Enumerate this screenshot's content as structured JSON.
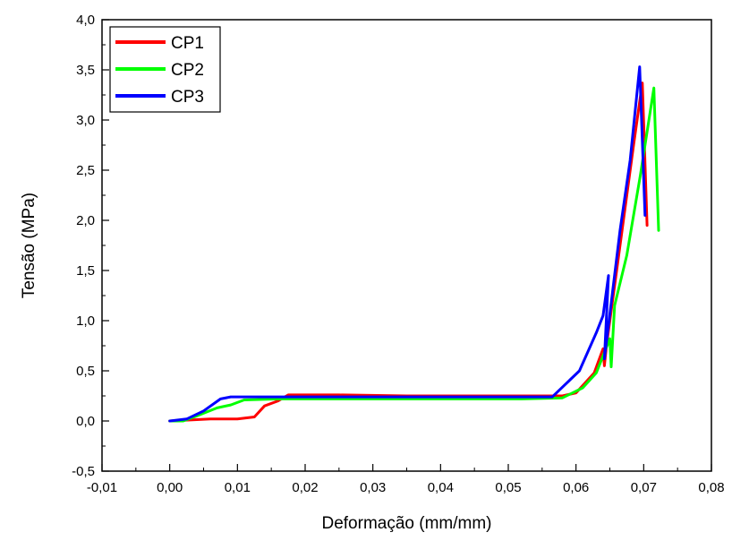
{
  "chart_data": {
    "type": "line",
    "xlabel": "Deformação (mm/mm)",
    "ylabel": "Tensão (MPa)",
    "xlim": [
      -0.01,
      0.08
    ],
    "ylim": [
      -0.5,
      4.0
    ],
    "x_ticks": [
      -0.01,
      0.0,
      0.01,
      0.02,
      0.03,
      0.04,
      0.05,
      0.06,
      0.07,
      0.08
    ],
    "x_tick_labels": [
      "-0,01",
      "0,00",
      "0,01",
      "0,02",
      "0,03",
      "0,04",
      "0,05",
      "0,06",
      "0,07",
      "0,08"
    ],
    "y_ticks": [
      -0.5,
      0.0,
      0.5,
      1.0,
      1.5,
      2.0,
      2.5,
      3.0,
      3.5,
      4.0
    ],
    "y_tick_labels": [
      "-0,5",
      "0,0",
      "0,5",
      "1,0",
      "1,5",
      "2,0",
      "2,5",
      "3,0",
      "3,5",
      "4,0"
    ],
    "grid": false,
    "legend_position": "top-left",
    "series": [
      {
        "name": "CP1",
        "color": "#ff0000",
        "points": [
          [
            0.0,
            0.0
          ],
          [
            0.003,
            0.01
          ],
          [
            0.006,
            0.02
          ],
          [
            0.01,
            0.02
          ],
          [
            0.0125,
            0.04
          ],
          [
            0.014,
            0.15
          ],
          [
            0.016,
            0.2
          ],
          [
            0.0175,
            0.26
          ],
          [
            0.025,
            0.26
          ],
          [
            0.035,
            0.25
          ],
          [
            0.045,
            0.25
          ],
          [
            0.052,
            0.25
          ],
          [
            0.058,
            0.25
          ],
          [
            0.06,
            0.28
          ],
          [
            0.0627,
            0.48
          ],
          [
            0.064,
            0.72
          ],
          [
            0.0642,
            0.55
          ],
          [
            0.0645,
            0.75
          ],
          [
            0.066,
            1.5
          ],
          [
            0.0685,
            2.75
          ],
          [
            0.0698,
            3.37
          ],
          [
            0.0705,
            1.95
          ]
        ]
      },
      {
        "name": "CP2",
        "color": "#00ff00",
        "points": [
          [
            0.0,
            0.0
          ],
          [
            0.002,
            0.0
          ],
          [
            0.004,
            0.05
          ],
          [
            0.007,
            0.13
          ],
          [
            0.009,
            0.16
          ],
          [
            0.011,
            0.21
          ],
          [
            0.016,
            0.22
          ],
          [
            0.025,
            0.22
          ],
          [
            0.035,
            0.22
          ],
          [
            0.045,
            0.22
          ],
          [
            0.052,
            0.22
          ],
          [
            0.058,
            0.23
          ],
          [
            0.061,
            0.33
          ],
          [
            0.063,
            0.48
          ],
          [
            0.065,
            0.82
          ],
          [
            0.0652,
            0.54
          ],
          [
            0.0657,
            1.15
          ],
          [
            0.0675,
            1.65
          ],
          [
            0.0695,
            2.45
          ],
          [
            0.0715,
            3.32
          ],
          [
            0.0722,
            1.9
          ]
        ]
      },
      {
        "name": "CP3",
        "color": "#0000ff",
        "points": [
          [
            0.0,
            0.0
          ],
          [
            0.0025,
            0.02
          ],
          [
            0.005,
            0.1
          ],
          [
            0.0075,
            0.22
          ],
          [
            0.009,
            0.24
          ],
          [
            0.015,
            0.24
          ],
          [
            0.025,
            0.24
          ],
          [
            0.035,
            0.24
          ],
          [
            0.045,
            0.24
          ],
          [
            0.052,
            0.24
          ],
          [
            0.0565,
            0.24
          ],
          [
            0.0605,
            0.5
          ],
          [
            0.063,
            0.88
          ],
          [
            0.064,
            1.05
          ],
          [
            0.0648,
            1.45
          ],
          [
            0.0642,
            0.62
          ],
          [
            0.0665,
            1.9
          ],
          [
            0.068,
            2.6
          ],
          [
            0.0694,
            3.53
          ],
          [
            0.0702,
            2.05
          ]
        ]
      }
    ]
  }
}
